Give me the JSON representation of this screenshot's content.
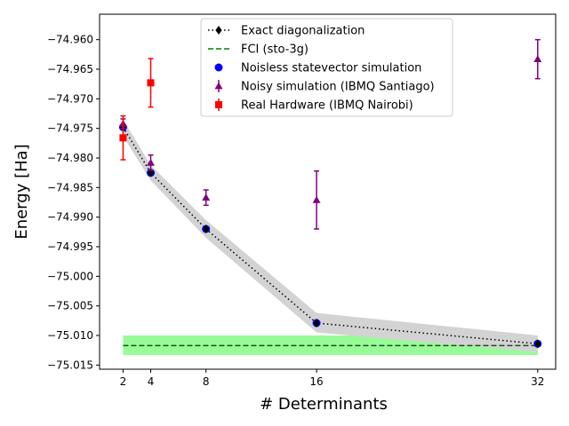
{
  "chart_data": {
    "type": "line",
    "xlabel": "# Determinants",
    "ylabel": "Energy [Ha]",
    "xlim": [
      0.3,
      33.3
    ],
    "ylim": [
      -75.0157,
      -74.9557
    ],
    "x_ticks": [
      2,
      4,
      8,
      16,
      32
    ],
    "y_ticks": [
      -74.96,
      -74.965,
      -74.97,
      -74.975,
      -74.98,
      -74.985,
      -74.99,
      -74.995,
      -75.0,
      -75.005,
      -75.01,
      -75.015
    ],
    "y_tick_labels": [
      "−74.960",
      "−74.965",
      "−74.970",
      "−74.975",
      "−74.980",
      "−74.985",
      "−74.990",
      "−74.995",
      "−75.000",
      "−75.005",
      "−75.010",
      "−75.015"
    ],
    "grid": false,
    "legend_position": "top-center",
    "fci_band": {
      "value": -75.0117,
      "lower": -75.0133,
      "upper": -75.01
    },
    "exact_band": {
      "x": [
        2,
        4,
        8,
        16,
        32
      ],
      "lower": [
        -74.9763,
        -74.9838,
        -74.9935,
        -75.0095,
        -75.0128
      ],
      "upper": [
        -74.9735,
        -74.9812,
        -74.9905,
        -75.0062,
        -75.01
      ]
    },
    "series": [
      {
        "name": "Exact diagonalization",
        "kind": "exact",
        "color": "#000000",
        "x": [
          2,
          4,
          8,
          16,
          32
        ],
        "values": [
          -74.9748,
          -74.9825,
          -74.992,
          -75.0079,
          -75.0114
        ]
      },
      {
        "name": "FCI (sto-3g)",
        "kind": "fci",
        "color": "#008000",
        "x": [
          2,
          32
        ],
        "values": [
          -75.0117,
          -75.0117
        ]
      },
      {
        "name": "Noisless statevector simulation",
        "kind": "statevector",
        "color": "#0000ff",
        "x": [
          2,
          4,
          8,
          16,
          32
        ],
        "values": [
          -74.9748,
          -74.9825,
          -74.992,
          -75.0079,
          -75.0114
        ]
      },
      {
        "name": "Noisy simulation (IBMQ Santiago)",
        "kind": "noisy",
        "color": "#800080",
        "x": [
          2,
          4,
          8,
          16,
          32
        ],
        "values": [
          -74.9742,
          -74.9808,
          -74.9867,
          -74.9871,
          -74.9633
        ],
        "errors": [
          0.0008,
          0.0013,
          0.0013,
          0.0049,
          0.0033
        ]
      },
      {
        "name": "Real Hardware (IBMQ Nairobi)",
        "kind": "hardware",
        "color": "#ff0000",
        "x": [
          2,
          4
        ],
        "values": [
          -74.9766,
          -74.9673
        ],
        "errors": [
          0.0037,
          0.0041
        ]
      }
    ]
  }
}
